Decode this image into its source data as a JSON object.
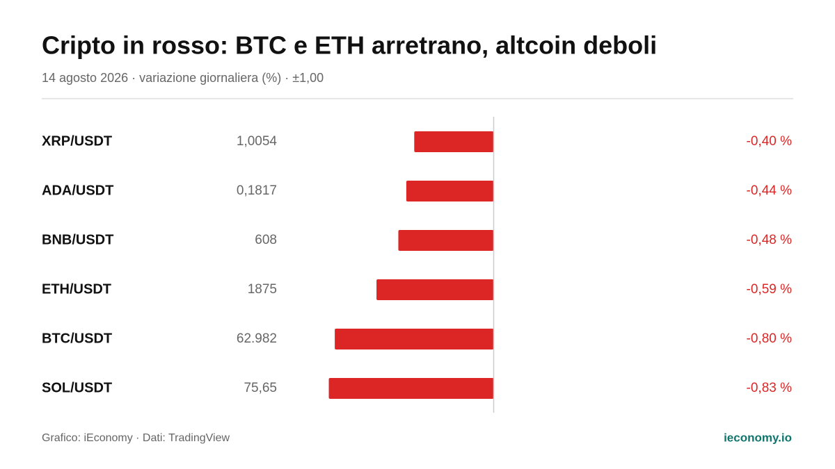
{
  "chart_data": {
    "type": "bar",
    "title": "Cripto in rosso: BTC e ETH arretrano, altcoin deboli",
    "subtitle": "14 agosto 2026 · variazione giornaliera (%) · ±1,00",
    "categories": [
      "XRP/USDT",
      "ADA/USDT",
      "BNB/USDT",
      "ETH/USDT",
      "BTC/USDT",
      "SOL/USDT"
    ],
    "prices": [
      "1,0054",
      "0,1817",
      "608",
      "1875",
      "62.982",
      "75,65"
    ],
    "values": [
      -0.4,
      -0.44,
      -0.48,
      -0.59,
      -0.8,
      -0.83
    ],
    "value_labels": [
      "-0,40 %",
      "-0,44 %",
      "-0,48 %",
      "-0,59 %",
      "-0,80 %",
      "-0,83 %"
    ],
    "color": "#dc2626",
    "xlim": [
      -1,
      1
    ],
    "source": "Grafico: iEconomy · Dati: TradingView",
    "brand": "ieconomy.io"
  }
}
